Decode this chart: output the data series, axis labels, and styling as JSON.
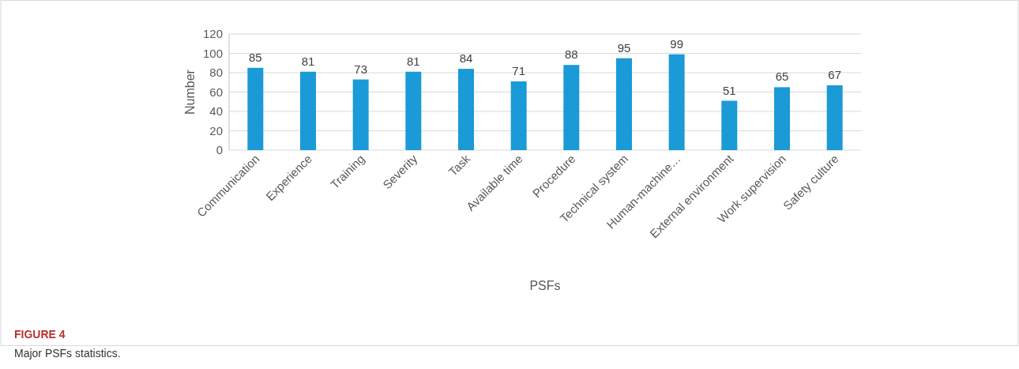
{
  "chart_data": {
    "type": "bar",
    "title": "FIGURE 4",
    "annotations": [
      "Major PSFs statistics."
    ],
    "xlabel": "PSFs",
    "ylabel": "Number",
    "categories": [
      "Communication",
      "Experience",
      "Training",
      "Severity",
      "Task",
      "Available time",
      "Procedure",
      "Technical system",
      "Human-machine…",
      "External environment",
      "Work supervision",
      "Safety culture"
    ],
    "values": [
      85,
      81,
      73,
      81,
      84,
      71,
      88,
      95,
      99,
      51,
      65,
      67
    ],
    "color": "#1a9ad6",
    "ylim": [
      0,
      120
    ],
    "yticks": [
      0,
      20,
      40,
      60,
      80,
      100,
      120
    ],
    "grid": "y",
    "data_labels": true
  }
}
